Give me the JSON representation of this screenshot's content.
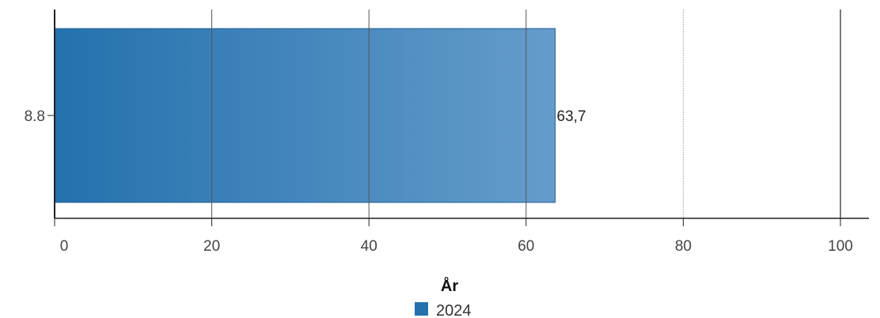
{
  "chart_data": {
    "type": "bar",
    "orientation": "horizontal",
    "categories": [
      "8.8"
    ],
    "series": [
      {
        "name": "2024",
        "values": [
          63.7
        ],
        "value_labels": [
          "63,7"
        ]
      }
    ],
    "x_ticks": [
      0,
      20,
      40,
      60,
      80,
      100
    ],
    "x_tick_labels": [
      "0",
      "20",
      "40",
      "60",
      "80",
      "100"
    ],
    "xlim": [
      0,
      100
    ],
    "grid": true,
    "legend": {
      "title": "År",
      "placement": "bottom-center",
      "entries": [
        "2024"
      ]
    },
    "colors": {
      "bar_start": "#2471ad",
      "bar_end": "#659ccb",
      "bar_stroke": "#1f5f94",
      "legend_swatch": "#2471ad",
      "grid_major": "#333333",
      "grid_minor": "#b5b5b5",
      "axis": "#222222"
    }
  }
}
